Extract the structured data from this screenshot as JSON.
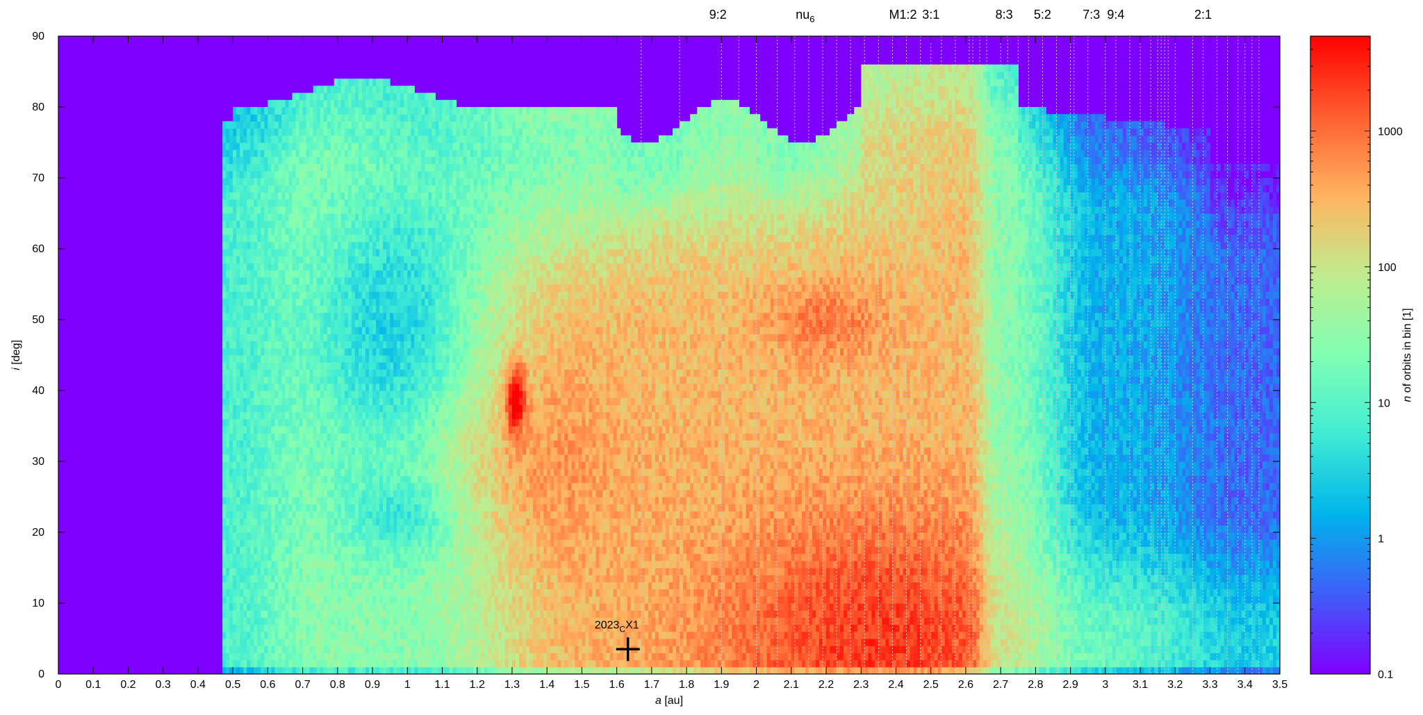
{
  "chart_data": {
    "type": "heatmap",
    "title": "",
    "xlabel": {
      "italic": "a",
      "rest": " [au]"
    },
    "ylabel": {
      "italic": "i",
      "rest": " [deg]"
    },
    "xlim": [
      0,
      3.5
    ],
    "ylim": [
      0,
      90
    ],
    "x_ticks": [
      "0",
      "0.1",
      "0.2",
      "0.3",
      "0.4",
      "0.5",
      "0.6",
      "0.7",
      "0.8",
      "0.9",
      "1",
      "1.1",
      "1.2",
      "1.3",
      "1.4",
      "1.5",
      "1.6",
      "1.7",
      "1.8",
      "1.9",
      "2",
      "2.1",
      "2.2",
      "2.3",
      "2.4",
      "2.5",
      "2.6",
      "2.7",
      "2.8",
      "2.9",
      "3",
      "3.1",
      "3.2",
      "3.3",
      "3.4",
      "3.5"
    ],
    "y_ticks": [
      "0",
      "10",
      "20",
      "30",
      "40",
      "50",
      "60",
      "70",
      "80",
      "90"
    ],
    "colorbar": {
      "label": {
        "italic": "n",
        "rest": " of orbits in bin [1]"
      },
      "scale": "log",
      "range": [
        0.1,
        5000
      ],
      "ticks": [
        "0.1",
        "1",
        "10",
        "100",
        "1000"
      ],
      "palette": [
        "#7f00ff",
        "#3f5ef8",
        "#00b4eb",
        "#40ecd4",
        "#80ffb4",
        "#c0ec8e",
        "#ffb360",
        "#ff5e30",
        "#ff0000"
      ],
      "background": "#7f00ff"
    },
    "resonances": [
      {
        "label": "9:2",
        "a": 1.89
      },
      {
        "label": "nu",
        "sub": "6",
        "a": 2.14
      },
      {
        "label": "M1:2",
        "a": 2.42
      },
      {
        "label": "3:1",
        "a": 2.5
      },
      {
        "label": "8:3",
        "a": 2.71
      },
      {
        "label": "5:2",
        "a": 2.82
      },
      {
        "label": "7:3",
        "a": 2.96
      },
      {
        "label": "9:4",
        "a": 3.03
      },
      {
        "label": "2:1",
        "a": 3.28
      }
    ],
    "resonance_lines_a": [
      1.67,
      1.78,
      1.9,
      1.95,
      2.0,
      2.06,
      2.11,
      2.15,
      2.19,
      2.23,
      2.27,
      2.31,
      2.35,
      2.39,
      2.43,
      2.47,
      2.5,
      2.53,
      2.57,
      2.61,
      2.62,
      2.64,
      2.66,
      2.7,
      2.72,
      2.75,
      2.78,
      2.82,
      2.86,
      2.9,
      2.91,
      2.95,
      3.0,
      3.03,
      3.07,
      3.1,
      3.13,
      3.15,
      3.16,
      3.17,
      3.18,
      3.2,
      3.25,
      3.28,
      3.32,
      3.35,
      3.38,
      3.4,
      3.42,
      3.44
    ],
    "marker": {
      "label_main": "2023",
      "label_sub": "C",
      "label_tail": "X1",
      "a": 1.632,
      "i": 3.5
    }
  }
}
